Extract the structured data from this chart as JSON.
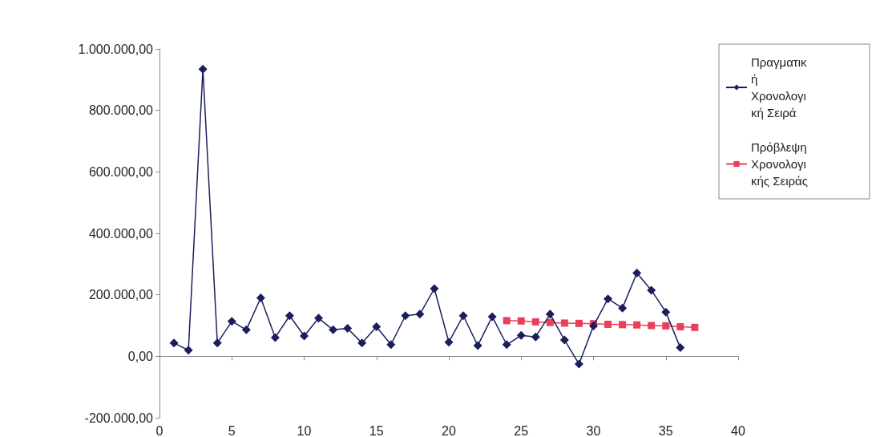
{
  "chart_data": {
    "type": "line",
    "x": [
      1,
      2,
      3,
      4,
      5,
      6,
      7,
      8,
      9,
      10,
      11,
      12,
      13,
      14,
      15,
      16,
      17,
      18,
      19,
      20,
      21,
      22,
      23,
      24,
      25,
      26,
      27,
      28,
      29,
      30,
      31,
      32,
      33,
      34,
      35,
      36
    ],
    "series": [
      {
        "name": "Πραγματική Χρονολογική Σειρά",
        "color": "#1a1f5c",
        "marker": "diamond",
        "values": [
          43000,
          20000,
          934000,
          43000,
          114000,
          86000,
          190000,
          61000,
          132000,
          66000,
          124000,
          86000,
          91000,
          43000,
          96000,
          38000,
          132000,
          137000,
          220000,
          46000,
          132000,
          35000,
          129000,
          38000,
          68000,
          63000,
          137000,
          53000,
          -25000,
          99000,
          187000,
          157000,
          271000,
          215000,
          144000,
          28000
        ]
      },
      {
        "name": "Πρόβλεψη Χρονολογικής Σειράς",
        "color": "#e8405a",
        "marker": "square",
        "x": [
          24,
          25,
          26,
          27,
          28,
          29,
          30,
          31,
          32,
          33,
          34,
          35,
          36,
          37
        ],
        "values": [
          116000,
          115000,
          112000,
          110000,
          108000,
          107000,
          106000,
          104000,
          103000,
          102000,
          100000,
          99000,
          96000,
          94000
        ]
      }
    ],
    "xlim": [
      0,
      40
    ],
    "xticks": [
      0,
      5,
      10,
      15,
      20,
      25,
      30,
      35,
      40
    ],
    "ylim": [
      -200000,
      1000000
    ],
    "yticks": [
      {
        "value": -200000,
        "label": "-200.000,00"
      },
      {
        "value": 0,
        "label": "0,00"
      },
      {
        "value": 200000,
        "label": "200.000,00"
      },
      {
        "value": 400000,
        "label": "400.000,00"
      },
      {
        "value": 600000,
        "label": "600.000,00"
      },
      {
        "value": 800000,
        "label": "800.000,00"
      },
      {
        "value": 1000000,
        "label": "1.000.000,00"
      }
    ],
    "legend": "top right"
  }
}
